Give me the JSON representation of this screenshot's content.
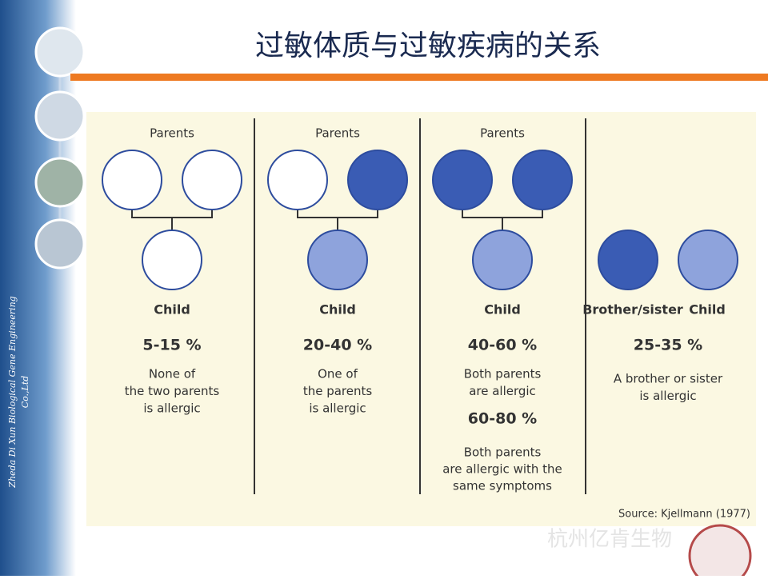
{
  "title": "过敏体质与过敏疾病的关系",
  "sidebar": {
    "company": "Zheda Di Xun Biological Gene Engineering",
    "company_suffix": "Co.,Ltd"
  },
  "columns": [
    {
      "parents_label": "Parents",
      "child_label": "Child",
      "percent": "5-15 %",
      "description": [
        "None of",
        "the two parents",
        "is allergic"
      ]
    },
    {
      "parents_label": "Parents",
      "child_label": "Child",
      "percent": "20-40 %",
      "description": [
        "One of",
        "the parents",
        "is allergic"
      ]
    },
    {
      "parents_label": "Parents",
      "child_label": "Child",
      "percent": "40-60 %",
      "description": [
        "Both parents",
        "are allergic"
      ],
      "percent2": "60-80 %",
      "description2": [
        "Both parents",
        "are allergic with the",
        "same symptoms"
      ]
    },
    {
      "sibling_label": "Brother/sister",
      "child_label": "Child",
      "percent": "25-35 %",
      "description": [
        "A brother or sister",
        "is allergic"
      ]
    }
  ],
  "source": "Source: Kjellmann (1977)",
  "watermark": "杭州亿肯生物"
}
